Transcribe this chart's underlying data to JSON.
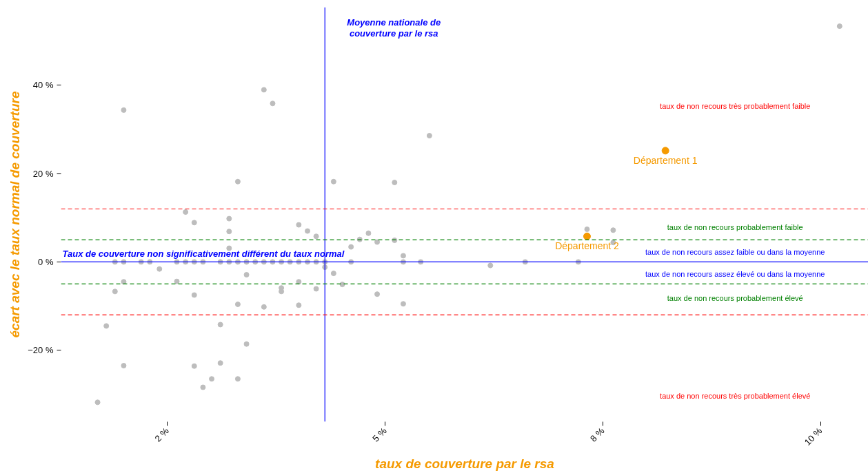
{
  "chart_data": {
    "type": "scatter",
    "xlabel": "taux de couverture par le rsa",
    "ylabel": "écart avec le taux normal de couverture",
    "xlim": [
      1.28,
      10.55
    ],
    "ylim": [
      -36.2,
      57.7
    ],
    "xticks": [
      {
        "value": 2.5,
        "label": "2 %"
      },
      {
        "value": 5,
        "label": "5 %"
      },
      {
        "value": 7.5,
        "label": "8 %"
      },
      {
        "value": 10,
        "label": "10 %"
      }
    ],
    "yticks": [
      {
        "value": -20,
        "label": "−20 %"
      },
      {
        "value": 0,
        "label": "0 %"
      },
      {
        "value": 20,
        "label": "20 %"
      },
      {
        "value": 40,
        "label": "40 %"
      }
    ],
    "grid": false,
    "marker": "circle",
    "series": [
      {
        "color": "#bdbdbd",
        "x": [
          2.0,
          3.61,
          3.71,
          3.31,
          4.41,
          2.71,
          2.81,
          3.21,
          3.21,
          3.21,
          4.01,
          4.11,
          4.21,
          1.9,
          2.0,
          2.2,
          2.3,
          2.61,
          2.71,
          2.81,
          2.91,
          3.11,
          3.21,
          3.31,
          3.41,
          3.51,
          3.61,
          3.71,
          3.81,
          3.91,
          4.01,
          4.11,
          4.21,
          4.31,
          4.61,
          5.21,
          5.41,
          6.61,
          7.22,
          4.31,
          2.41,
          2.0,
          2.61,
          3.41,
          1.9,
          2.81,
          3.81,
          3.81,
          4.01,
          4.21,
          4.41,
          4.51,
          3.31,
          3.61,
          4.01,
          1.8,
          3.11,
          3.41,
          2.0,
          2.81,
          3.11,
          3.01,
          3.31,
          2.91,
          1.7,
          5.51,
          5.11,
          4.81,
          4.71,
          4.91,
          5.11,
          4.61,
          5.21,
          6.21,
          4.91,
          5.21,
          7.32,
          7.62,
          7.62,
          10.22
        ],
        "values": [
          34.4,
          39.0,
          35.9,
          18.2,
          18.2,
          11.3,
          8.9,
          9.8,
          6.9,
          3.1,
          8.4,
          7.0,
          5.8,
          0,
          0,
          0,
          0,
          0,
          0,
          0,
          0,
          0,
          0,
          0,
          0,
          0,
          0,
          0,
          0,
          0,
          0,
          0,
          0,
          0,
          0,
          0,
          0,
          0,
          0,
          -1.2,
          -1.6,
          -4.5,
          -4.4,
          -2.9,
          -6.7,
          -7.5,
          -5.9,
          -6.7,
          -4.5,
          -6.1,
          -2.6,
          -5.1,
          -9.6,
          -10.2,
          -9.8,
          -14.5,
          -14.2,
          -18.6,
          -23.5,
          -23.6,
          -22.9,
          -26.5,
          -26.5,
          -28.4,
          -31.8,
          28.6,
          18.0,
          6.5,
          5.1,
          4.5,
          4.9,
          3.4,
          1.4,
          -0.8,
          -7.3,
          -9.5,
          7.4,
          7.2,
          4.4,
          53.4
        ]
      },
      {
        "color": "#f59a00",
        "x": [
          8.22,
          7.32
        ],
        "values": [
          25.2,
          5.8
        ]
      }
    ],
    "ref_lines": [
      {
        "axis": "y",
        "value": 0,
        "label": "Taux de couverture non significativement différent du taux normal",
        "color": "#0000ff",
        "line_style": "solid"
      },
      {
        "axis": "x",
        "value": 4.31,
        "label": "Moyenne nationale de couverture par le rsa",
        "color": "#0000ff",
        "line_style": "solid"
      },
      {
        "axis": "y",
        "value": 12,
        "color": "#ff0000",
        "line_style": "dashed"
      },
      {
        "axis": "y",
        "value": -12,
        "color": "#ff0000",
        "line_style": "dashed"
      },
      {
        "axis": "y",
        "value": 5,
        "color": "#008000",
        "line_style": "dashed"
      },
      {
        "axis": "y",
        "value": -5,
        "color": "#008000",
        "line_style": "dashed"
      }
    ],
    "annotations": [
      {
        "text": "Département 1",
        "x": 8.22,
        "y": 25.2
      },
      {
        "text": "Département 2",
        "x": 7.32,
        "y": 5.8
      },
      "taux de non recours très probablement faible",
      "taux de non recours probablement faible",
      "taux de non recours assez faible ou dans la moyenne",
      "taux de non recours assez élevé ou dans la moyenne",
      "taux de non recours probablement élevé",
      "taux de non recours très probablement élevé"
    ]
  }
}
